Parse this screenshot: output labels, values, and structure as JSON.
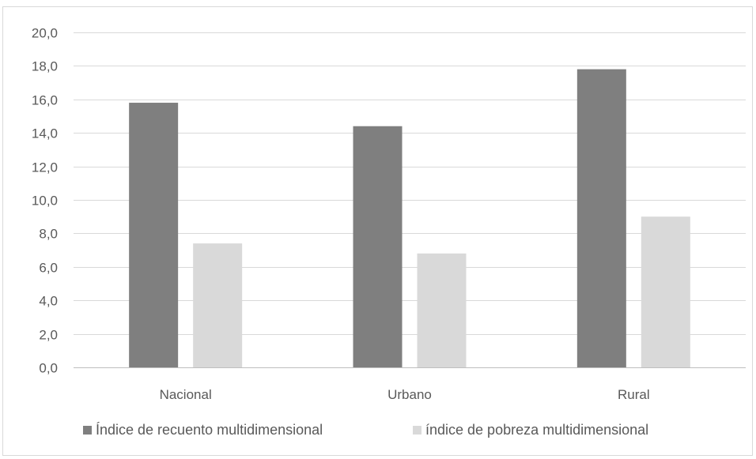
{
  "chart_data": {
    "type": "bar",
    "categories": [
      "Nacional",
      "Urbano",
      "Rural"
    ],
    "series": [
      {
        "name": "Índice de recuento multidimensional",
        "values": [
          15.8,
          14.4,
          17.8
        ],
        "color": "#7f7f7f"
      },
      {
        "name": "índice de pobreza multidimensional",
        "values": [
          7.4,
          6.8,
          9.0
        ],
        "color": "#d9d9d9"
      }
    ],
    "ylim": [
      0,
      20
    ],
    "yticks": [
      "0,0",
      "2,0",
      "4,0",
      "6,0",
      "8,0",
      "10,0",
      "12,0",
      "14,0",
      "16,0",
      "18,0",
      "20,0"
    ],
    "ytick_values": [
      0,
      2,
      4,
      6,
      8,
      10,
      12,
      14,
      16,
      18,
      20
    ],
    "grid": true,
    "legend_position": "bottom",
    "gridline_color": "#d9d9d9",
    "axis_line_color": "#bfbfbf"
  }
}
